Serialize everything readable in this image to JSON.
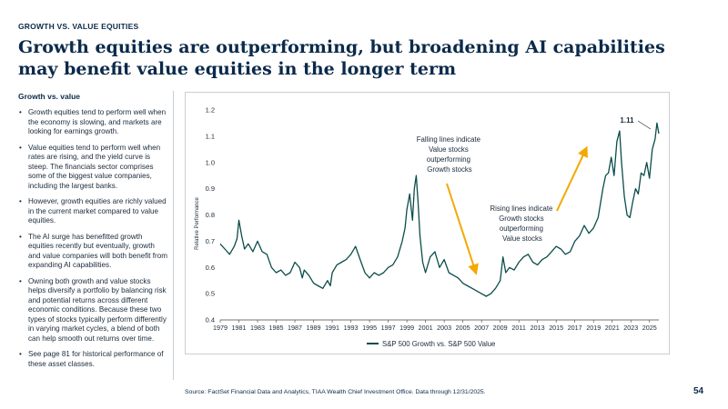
{
  "header": {
    "section_label": "GROWTH VS. VALUE EQUITIES",
    "title": "Growth equities are outperforming, but broadening AI capabilities may benefit value equities in the longer term"
  },
  "left": {
    "subheading": "Growth vs. value",
    "bullets": [
      "Growth equities tend to perform well when the economy is slowing, and markets are looking for earnings growth.",
      "Value equities tend to perform well when rates are rising, and the yield curve is steep. The financials sector comprises some of the biggest value companies, including the largest banks.",
      "However, growth equities are richly valued in the current market compared to value equities.",
      "The AI surge has benefitted growth equities recently but eventually, growth and value companies will both benefit from expanding AI capabilities.",
      "Owning both growth and value stocks helps diversify a portfolio by balancing risk and potential returns across different economic conditions. Because these two types of stocks typically perform differently in varying market cycles, a blend of both can help smooth out returns over time.",
      "See page 81 for historical performance of these asset classes."
    ]
  },
  "footer": {
    "source": "Source: FactSet Financial Data and Analytics, TIAA Wealth Chief Investment Office. Data through 12/31/2025.",
    "page_number": "54"
  },
  "chart_data": {
    "type": "line",
    "title": "",
    "xlabel": "",
    "ylabel": "Relative Performance",
    "xlim": [
      1979,
      2026
    ],
    "ylim": [
      0.4,
      1.2
    ],
    "yticks": [
      "0.4",
      "0.5",
      "0.6",
      "0.7",
      "0.8",
      "0.9",
      "1.0",
      "1.1",
      "1.2"
    ],
    "xticks": [
      "1979",
      "1981",
      "1983",
      "1985",
      "1987",
      "1989",
      "1991",
      "1993",
      "1995",
      "1997",
      "1999",
      "2001",
      "2003",
      "2005",
      "2007",
      "2009",
      "2011",
      "2013",
      "2015",
      "2017",
      "2019",
      "2021",
      "2023",
      "2025"
    ],
    "grid": false,
    "legend": "bottom",
    "line_color": "#0b4d4a",
    "arrow_color": "#f2a900",
    "series": [
      {
        "name": "S&P 500 Growth vs. S&P 500 Value",
        "x": [
          1979.0,
          1979.5,
          1980.0,
          1980.5,
          1980.8,
          1981.0,
          1981.3,
          1981.6,
          1982.0,
          1982.5,
          1983.0,
          1983.5,
          1984.0,
          1984.5,
          1985.0,
          1985.5,
          1986.0,
          1986.5,
          1987.0,
          1987.5,
          1987.8,
          1988.0,
          1988.5,
          1989.0,
          1989.5,
          1990.0,
          1990.5,
          1990.8,
          1991.0,
          1991.5,
          1992.0,
          1992.5,
          1993.0,
          1993.5,
          1994.0,
          1994.5,
          1995.0,
          1995.5,
          1996.0,
          1996.5,
          1997.0,
          1997.5,
          1998.0,
          1998.5,
          1998.8,
          1999.0,
          1999.3,
          1999.6,
          1999.8,
          2000.0,
          2000.2,
          2000.4,
          2000.7,
          2001.0,
          2001.5,
          2002.0,
          2002.5,
          2003.0,
          2003.5,
          2004.0,
          2004.5,
          2005.0,
          2005.5,
          2006.0,
          2006.5,
          2007.0,
          2007.5,
          2008.0,
          2008.5,
          2009.0,
          2009.3,
          2009.6,
          2010.0,
          2010.5,
          2011.0,
          2011.5,
          2012.0,
          2012.5,
          2013.0,
          2013.5,
          2014.0,
          2014.5,
          2015.0,
          2015.5,
          2016.0,
          2016.5,
          2017.0,
          2017.5,
          2018.0,
          2018.5,
          2019.0,
          2019.5,
          2020.0,
          2020.3,
          2020.6,
          2020.9,
          2021.2,
          2021.5,
          2021.8,
          2022.0,
          2022.3,
          2022.6,
          2022.9,
          2023.2,
          2023.5,
          2023.8,
          2024.1,
          2024.4,
          2024.7,
          2025.0,
          2025.3,
          2025.6,
          2025.8,
          2026.0
        ],
        "values": [
          0.69,
          0.67,
          0.65,
          0.68,
          0.71,
          0.78,
          0.72,
          0.67,
          0.69,
          0.66,
          0.7,
          0.66,
          0.65,
          0.6,
          0.58,
          0.59,
          0.57,
          0.58,
          0.62,
          0.6,
          0.56,
          0.59,
          0.57,
          0.54,
          0.53,
          0.52,
          0.55,
          0.53,
          0.58,
          0.61,
          0.62,
          0.63,
          0.65,
          0.68,
          0.63,
          0.58,
          0.56,
          0.58,
          0.57,
          0.58,
          0.6,
          0.61,
          0.64,
          0.7,
          0.75,
          0.82,
          0.88,
          0.78,
          0.9,
          0.95,
          0.85,
          0.72,
          0.62,
          0.58,
          0.64,
          0.66,
          0.6,
          0.63,
          0.58,
          0.57,
          0.56,
          0.54,
          0.53,
          0.52,
          0.51,
          0.5,
          0.49,
          0.5,
          0.52,
          0.55,
          0.64,
          0.58,
          0.6,
          0.59,
          0.62,
          0.64,
          0.65,
          0.62,
          0.61,
          0.63,
          0.64,
          0.66,
          0.68,
          0.67,
          0.65,
          0.66,
          0.7,
          0.72,
          0.76,
          0.73,
          0.75,
          0.79,
          0.9,
          0.95,
          0.96,
          1.02,
          0.95,
          1.08,
          1.12,
          1.0,
          0.87,
          0.8,
          0.79,
          0.85,
          0.9,
          0.88,
          0.96,
          0.95,
          1.0,
          0.94,
          1.05,
          1.09,
          1.15,
          1.11
        ]
      }
    ],
    "annotations": [
      {
        "text": "1.11",
        "x": 2024.9,
        "y": 1.11
      },
      {
        "lines": [
          "Falling lines indicate",
          "Value stocks",
          "outperforming",
          "Growth stocks"
        ]
      },
      {
        "lines": [
          "Rising lines indicate",
          "Growth stocks",
          "outperforming",
          "Value stocks"
        ]
      }
    ]
  }
}
